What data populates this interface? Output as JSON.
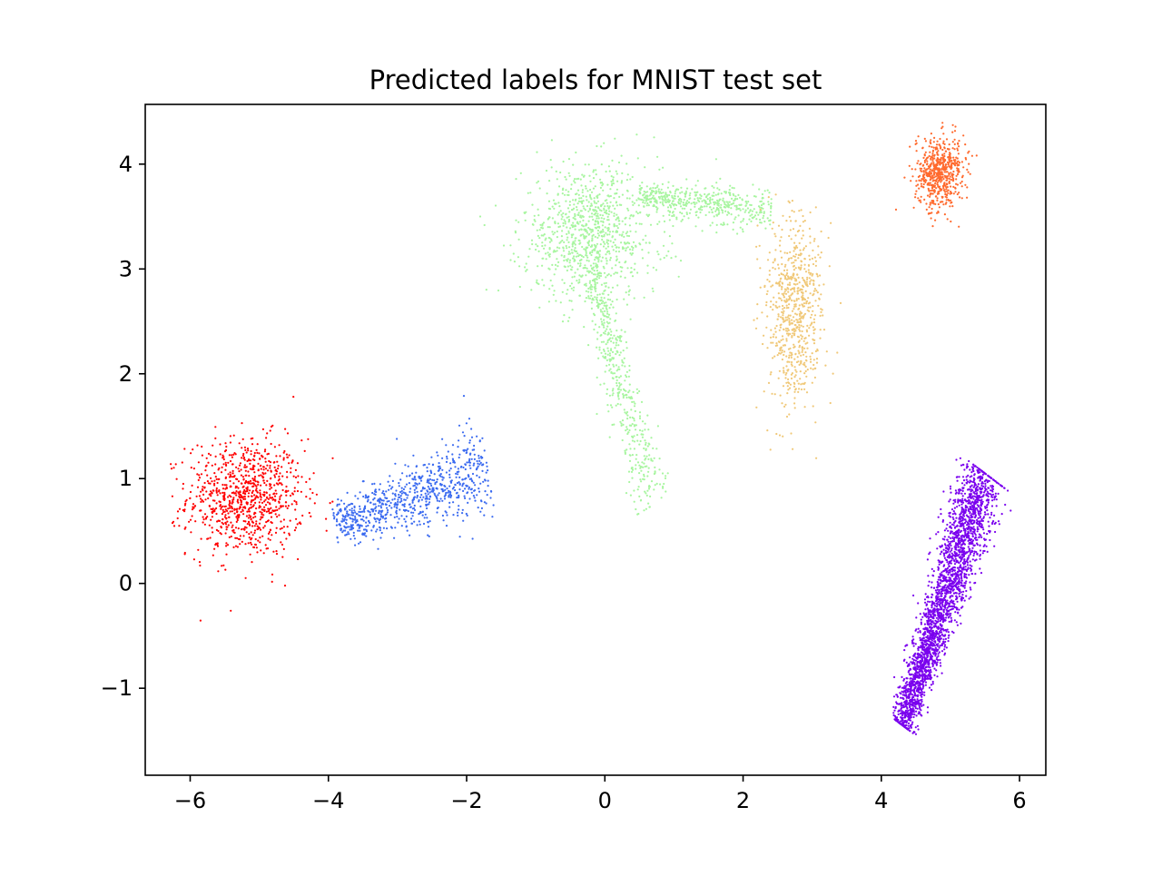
{
  "chart_data": {
    "type": "scatter",
    "title": "Predicted labels for MNIST test set",
    "xlabel": "",
    "ylabel": "",
    "xlim": [
      -6.65,
      6.38
    ],
    "ylim": [
      -1.83,
      4.57
    ],
    "xticks": [
      -6,
      -4,
      -2,
      0,
      2,
      4,
      6
    ],
    "yticks": [
      -1,
      0,
      1,
      2,
      3,
      4
    ],
    "xtick_labels": [
      "−6",
      "−4",
      "−2",
      "0",
      "2",
      "4",
      "6"
    ],
    "ytick_labels": [
      "−1",
      "0",
      "1",
      "2",
      "3",
      "4"
    ],
    "grid": false,
    "legend": "none",
    "marker_size": "tiny dots",
    "clusters": [
      {
        "color": "#ff0000",
        "approx_points": 900,
        "shape": "blob centered near (-5.2, 0.8), x range -6.0 to -4.2, y range 0.1 to 1.5",
        "center": [
          -5.2,
          0.82
        ],
        "spread": [
          0.42,
          0.28
        ]
      },
      {
        "color": "#3b6bf0",
        "approx_points": 800,
        "shape": "elongated band rising from (-4.0, 0.45) to (-1.6, 1.3)",
        "from": [
          -3.9,
          0.55
        ],
        "to": [
          -1.7,
          1.1
        ],
        "width": 0.17
      },
      {
        "color": "#a8f5a0",
        "approx_points": 1900,
        "shape": "Y shape: dense region near (0, 3.4) with arm toward (1.5, 3.8) and tail down to (0.7, 0.7)",
        "center": [
          -0.2,
          3.35
        ],
        "spread": [
          0.5,
          0.32
        ],
        "arm_from": [
          0.5,
          3.7
        ],
        "arm_to": [
          2.4,
          3.55
        ],
        "tail_from": [
          -0.2,
          3.0
        ],
        "tail_to": [
          0.7,
          0.75
        ]
      },
      {
        "color": "#f0c878",
        "approx_points": 700,
        "shape": "vertical cluster x 2.2 to 3.3, y 1.4 to 3.4",
        "center": [
          2.75,
          2.6
        ],
        "spread": [
          0.2,
          0.45
        ]
      },
      {
        "color": "#ff6a2e",
        "approx_points": 600,
        "shape": "compact blob centered near (4.85, 3.9)",
        "center": [
          4.85,
          3.92
        ],
        "spread": [
          0.18,
          0.16
        ]
      },
      {
        "color": "#7a00ee",
        "approx_points": 2600,
        "shape": "long diagonal streak from (4.3, -1.4) to (5.5, 1.2)",
        "from": [
          4.3,
          -1.35
        ],
        "to": [
          5.5,
          1.05
        ],
        "width": 0.14
      }
    ]
  }
}
